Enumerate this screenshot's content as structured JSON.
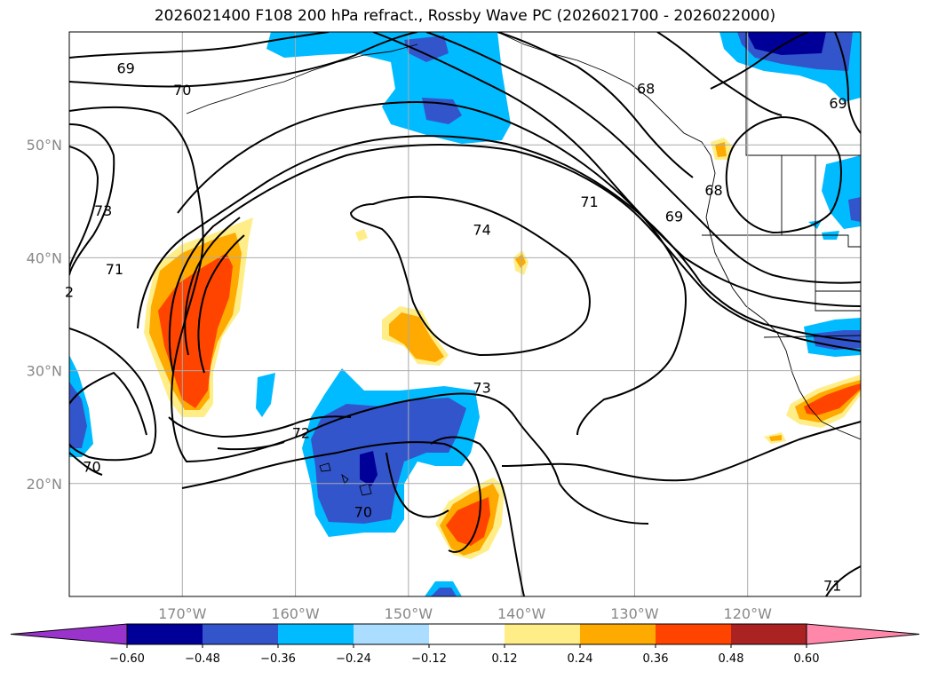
{
  "title": "2026021400 F108 200 hPa refract., Rossby Wave PC (2026021700 - 2026022000)",
  "map": {
    "lon_range": [
      -180,
      -110
    ],
    "lat_range": [
      10,
      60
    ],
    "lon_ticks": [
      {
        "value": -170,
        "label": "170°W"
      },
      {
        "value": -160,
        "label": "160°W"
      },
      {
        "value": -150,
        "label": "150°W"
      },
      {
        "value": -140,
        "label": "140°W"
      },
      {
        "value": -130,
        "label": "130°W"
      },
      {
        "value": -120,
        "label": "120°W"
      }
    ],
    "lat_ticks": [
      {
        "value": 20,
        "label": "20°N"
      },
      {
        "value": 30,
        "label": "30°N"
      },
      {
        "value": 40,
        "label": "40°N"
      },
      {
        "value": 50,
        "label": "50°N"
      }
    ],
    "grid": true,
    "contour_labels": [
      {
        "text": "69",
        "lon": -175,
        "lat": 56.8
      },
      {
        "text": "70",
        "lon": -170,
        "lat": 54.9
      },
      {
        "text": "73",
        "lon": -177,
        "lat": 44.2
      },
      {
        "text": "71",
        "lon": -176,
        "lat": 39.0
      },
      {
        "text": "2",
        "lon": -180,
        "lat": 37.0
      },
      {
        "text": "70",
        "lon": -178,
        "lat": 21.5
      },
      {
        "text": "74",
        "lon": -143.5,
        "lat": 42.5
      },
      {
        "text": "73",
        "lon": -143.5,
        "lat": 28.5
      },
      {
        "text": "72",
        "lon": -159.5,
        "lat": 24.5
      },
      {
        "text": "70",
        "lon": -154,
        "lat": 17.5
      },
      {
        "text": "71",
        "lon": -134,
        "lat": 45.0
      },
      {
        "text": "69",
        "lon": -126.5,
        "lat": 43.7
      },
      {
        "text": "68",
        "lon": -129,
        "lat": 55.0
      },
      {
        "text": "68",
        "lon": -123,
        "lat": 46.0
      },
      {
        "text": "69",
        "lon": -112,
        "lat": 53.7
      },
      {
        "text": "71",
        "lon": -112.5,
        "lat": 11.0
      }
    ]
  },
  "colorbar": {
    "ticks": [
      "−0.60",
      "−0.48",
      "−0.36",
      "−0.24",
      "−0.12",
      "0.12",
      "0.24",
      "0.36",
      "0.48",
      "0.60"
    ],
    "colors": [
      "#9933cc",
      "#000099",
      "#3355cc",
      "#00bbff",
      "#aaddff",
      "#ffffff",
      "#ffee88",
      "#ffaa00",
      "#ff4400",
      "#aa2222",
      "#ff88aa"
    ]
  },
  "colors": {
    "positive_light": "#ffee88",
    "positive_mid": "#ffaa00",
    "positive_high": "#ff4400",
    "negative_light": "#aaddff",
    "negative_mid": "#00bbff",
    "negative_high": "#3355cc",
    "negative_max": "#000099"
  }
}
